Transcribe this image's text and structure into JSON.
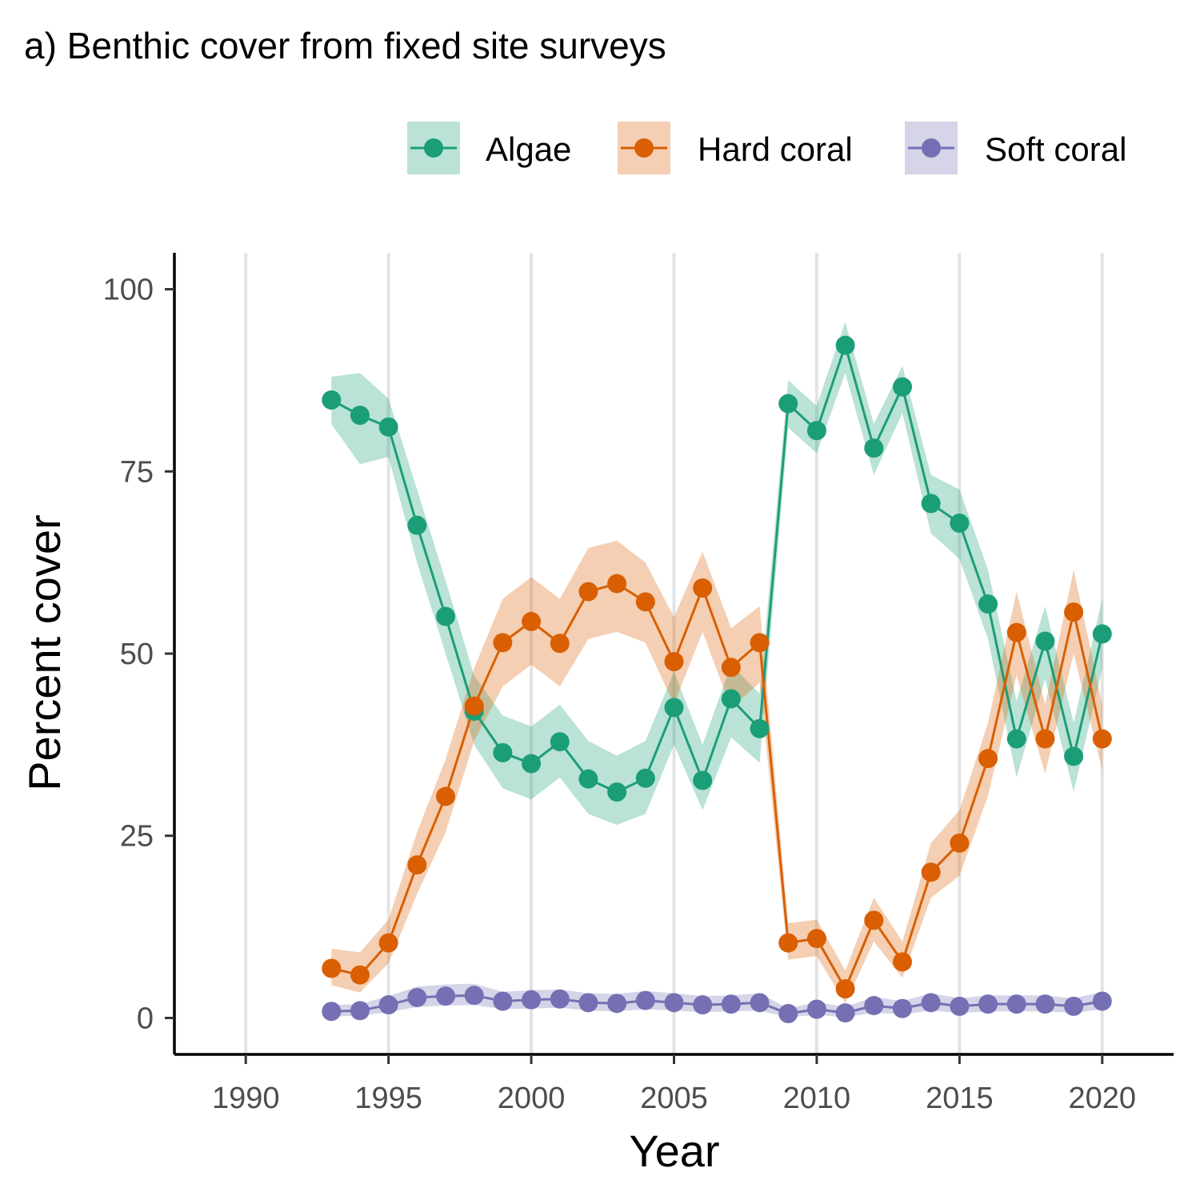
{
  "colors": {
    "Algae": "#1b9e77",
    "Hard coral": "#d95f02",
    "Soft coral": "#7570b3",
    "gridline": "#e3e3e3",
    "axis": "#000000"
  },
  "chart_data": {
    "type": "line",
    "title": "a) Benthic cover from fixed site surveys",
    "xlabel": "Year",
    "ylabel": "Percent cover",
    "xlim": [
      1987.5,
      2022.5
    ],
    "ylim": [
      -5,
      105
    ],
    "x_ticks": [
      1990,
      1995,
      2000,
      2005,
      2010,
      2015,
      2020
    ],
    "y_ticks": [
      0,
      25,
      50,
      75,
      100
    ],
    "grid": "vertical major gridlines",
    "legend_position": "top-right",
    "x": [
      1993,
      1994,
      1995,
      1996,
      1997,
      1998,
      1999,
      2000,
      2001,
      2002,
      2003,
      2004,
      2005,
      2006,
      2007,
      2008,
      2009,
      2010,
      2011,
      2012,
      2013,
      2014,
      2015,
      2016,
      2017,
      2018,
      2019,
      2020
    ],
    "series": [
      {
        "name": "Algae",
        "values": [
          84.8,
          82.7,
          81.1,
          67.6,
          55.1,
          42.1,
          36.4,
          34.9,
          37.9,
          32.8,
          31.0,
          32.9,
          42.6,
          32.6,
          43.8,
          39.7,
          84.3,
          80.6,
          92.3,
          78.2,
          86.6,
          70.6,
          67.9,
          56.8,
          38.3,
          51.7,
          35.9,
          52.7
        ],
        "lower": [
          81.5,
          76.0,
          77.0,
          62.5,
          50.0,
          37.5,
          31.5,
          30.0,
          33.0,
          28.0,
          26.5,
          28.0,
          37.5,
          28.5,
          38.5,
          35.0,
          81.0,
          77.5,
          88.5,
          74.5,
          83.0,
          66.5,
          63.0,
          52.0,
          33.0,
          46.5,
          31.0,
          48.0
        ],
        "upper": [
          88.0,
          88.5,
          85.0,
          72.5,
          60.0,
          47.0,
          41.5,
          40.0,
          43.0,
          38.0,
          36.0,
          38.0,
          47.5,
          37.5,
          48.5,
          44.5,
          87.5,
          84.0,
          95.5,
          81.5,
          89.5,
          74.5,
          72.5,
          61.5,
          43.5,
          56.5,
          40.5,
          57.5
        ]
      },
      {
        "name": "Hard coral",
        "values": [
          6.8,
          5.9,
          10.3,
          21.0,
          30.4,
          42.8,
          51.5,
          54.4,
          51.4,
          58.5,
          59.6,
          57.1,
          48.9,
          59.0,
          48.1,
          51.5,
          10.3,
          10.9,
          4.0,
          13.4,
          7.7,
          20.0,
          24.0,
          35.6,
          52.9,
          38.3,
          55.7,
          38.3
        ],
        "lower": [
          4.5,
          3.5,
          7.5,
          17.0,
          25.5,
          38.0,
          45.5,
          48.5,
          45.5,
          52.0,
          53.0,
          51.5,
          43.0,
          53.0,
          42.5,
          46.0,
          8.0,
          8.5,
          2.0,
          10.5,
          5.5,
          16.5,
          19.5,
          30.5,
          47.0,
          33.5,
          50.0,
          34.0
        ],
        "upper": [
          9.5,
          9.0,
          13.5,
          25.5,
          35.5,
          48.0,
          57.5,
          60.5,
          57.5,
          64.5,
          65.5,
          62.5,
          55.0,
          64.0,
          53.5,
          56.5,
          13.0,
          13.5,
          6.5,
          16.5,
          10.5,
          24.0,
          28.5,
          40.5,
          58.5,
          43.0,
          61.5,
          43.0
        ]
      },
      {
        "name": "Soft coral",
        "values": [
          0.9,
          1.0,
          1.8,
          2.8,
          3.0,
          3.1,
          2.3,
          2.5,
          2.6,
          2.1,
          2.0,
          2.4,
          2.1,
          1.8,
          1.9,
          2.1,
          0.6,
          1.2,
          0.7,
          1.7,
          1.3,
          2.1,
          1.6,
          1.9,
          1.9,
          1.9,
          1.6,
          2.3
        ],
        "lower": [
          0.2,
          0.3,
          0.8,
          1.5,
          1.7,
          1.8,
          1.2,
          1.3,
          1.4,
          1.0,
          0.9,
          1.2,
          1.0,
          0.8,
          0.9,
          1.0,
          0.1,
          0.4,
          0.1,
          0.7,
          0.5,
          1.0,
          0.7,
          0.9,
          0.9,
          0.9,
          0.7,
          1.2
        ],
        "upper": [
          1.8,
          1.9,
          3.0,
          4.3,
          4.6,
          4.7,
          3.6,
          3.8,
          3.9,
          3.4,
          3.3,
          3.7,
          3.4,
          3.0,
          3.1,
          3.4,
          1.3,
          2.2,
          1.5,
          2.9,
          2.3,
          3.4,
          2.7,
          3.1,
          3.1,
          3.1,
          2.7,
          3.6
        ]
      }
    ]
  }
}
